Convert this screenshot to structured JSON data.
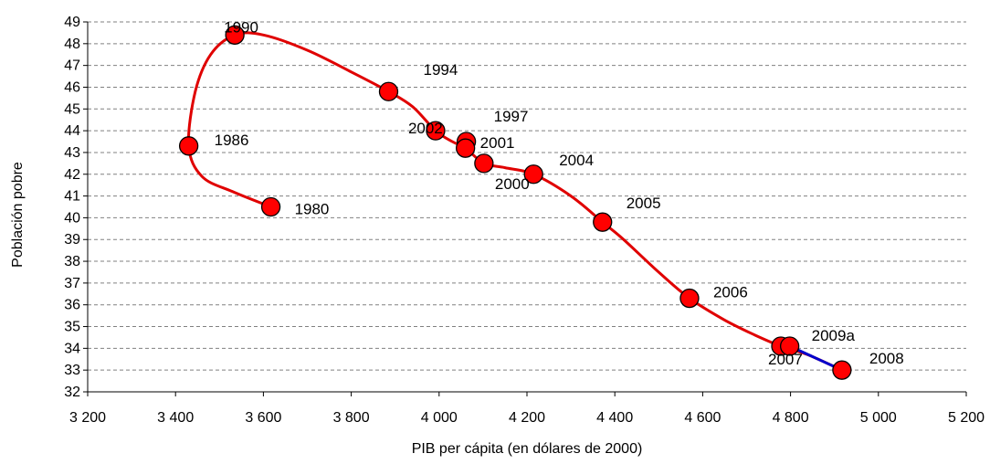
{
  "chart_data": {
    "type": "scatter",
    "title": "",
    "xlabel": "PIB per cápita (en dólares de 2000)",
    "ylabel": "Población pobre",
    "xlim": [
      3200,
      5200
    ],
    "ylim": [
      32,
      49
    ],
    "x_ticks": [
      3200,
      3400,
      3600,
      3800,
      4000,
      4200,
      4400,
      4600,
      4800,
      5000,
      5200
    ],
    "x_tick_labels": [
      "3 200",
      "3 400",
      "3 600",
      "3 800",
      "4 000",
      "4 200",
      "4 400",
      "4 600",
      "4 800",
      "5 000",
      "5 200"
    ],
    "y_ticks": [
      32,
      33,
      34,
      35,
      36,
      37,
      38,
      39,
      40,
      41,
      42,
      43,
      44,
      45,
      46,
      47,
      48,
      49
    ],
    "y_tick_labels": [
      "32",
      "33",
      "34",
      "35",
      "36",
      "37",
      "38",
      "39",
      "40",
      "41",
      "42",
      "43",
      "44",
      "45",
      "46",
      "47",
      "48",
      "49"
    ],
    "grid": "horizontal dashed",
    "legend": "none",
    "colors": {
      "line": "#e00000",
      "marker": "#ff0000",
      "marker_edge": "#000000",
      "projection": "#0000cc",
      "grid": "#808080"
    },
    "points": [
      {
        "label": "1980",
        "x": 3617,
        "y": 40.5
      },
      {
        "label": "1986",
        "x": 3430,
        "y": 43.3
      },
      {
        "label": "1990",
        "x": 3535,
        "y": 48.4
      },
      {
        "label": "1994",
        "x": 3885,
        "y": 45.8
      },
      {
        "label": "1997",
        "x": 4062,
        "y": 43.5
      },
      {
        "label": "2000",
        "x": 4102,
        "y": 42.5
      },
      {
        "label": "2001",
        "x": 4060,
        "y": 43.2
      },
      {
        "label": "2002",
        "x": 3992,
        "y": 44.0
      },
      {
        "label": "2004",
        "x": 4215,
        "y": 42.0
      },
      {
        "label": "2005",
        "x": 4372,
        "y": 39.8
      },
      {
        "label": "2006",
        "x": 4570,
        "y": 36.3
      },
      {
        "label": "2007",
        "x": 4778,
        "y": 34.1
      },
      {
        "label": "2008",
        "x": 4917,
        "y": 33.0
      },
      {
        "label": "2009a",
        "x": 4798,
        "y": 34.1
      }
    ],
    "red_path": [
      [
        3617,
        40.5
      ],
      [
        3530,
        41.2
      ],
      [
        3460,
        41.9
      ],
      [
        3430,
        43.3
      ],
      [
        3445,
        45.8
      ],
      [
        3480,
        47.5
      ],
      [
        3535,
        48.4
      ],
      [
        3600,
        48.4
      ],
      [
        3700,
        47.7
      ],
      [
        3800,
        46.7
      ],
      [
        3885,
        45.8
      ],
      [
        3940,
        45.1
      ],
      [
        3992,
        44.0
      ],
      [
        4030,
        43.5
      ],
      [
        4060,
        43.2
      ],
      [
        4102,
        42.5
      ],
      [
        4150,
        42.3
      ],
      [
        4215,
        42.0
      ],
      [
        4300,
        41.0
      ],
      [
        4372,
        39.8
      ],
      [
        4420,
        39.0
      ],
      [
        4500,
        37.5
      ],
      [
        4570,
        36.3
      ],
      [
        4650,
        35.3
      ],
      [
        4720,
        34.6
      ],
      [
        4778,
        34.1
      ],
      [
        4840,
        33.7
      ],
      [
        4917,
        33.0
      ]
    ],
    "projection_path": [
      [
        4798,
        34.1
      ],
      [
        4917,
        33.0
      ]
    ]
  }
}
